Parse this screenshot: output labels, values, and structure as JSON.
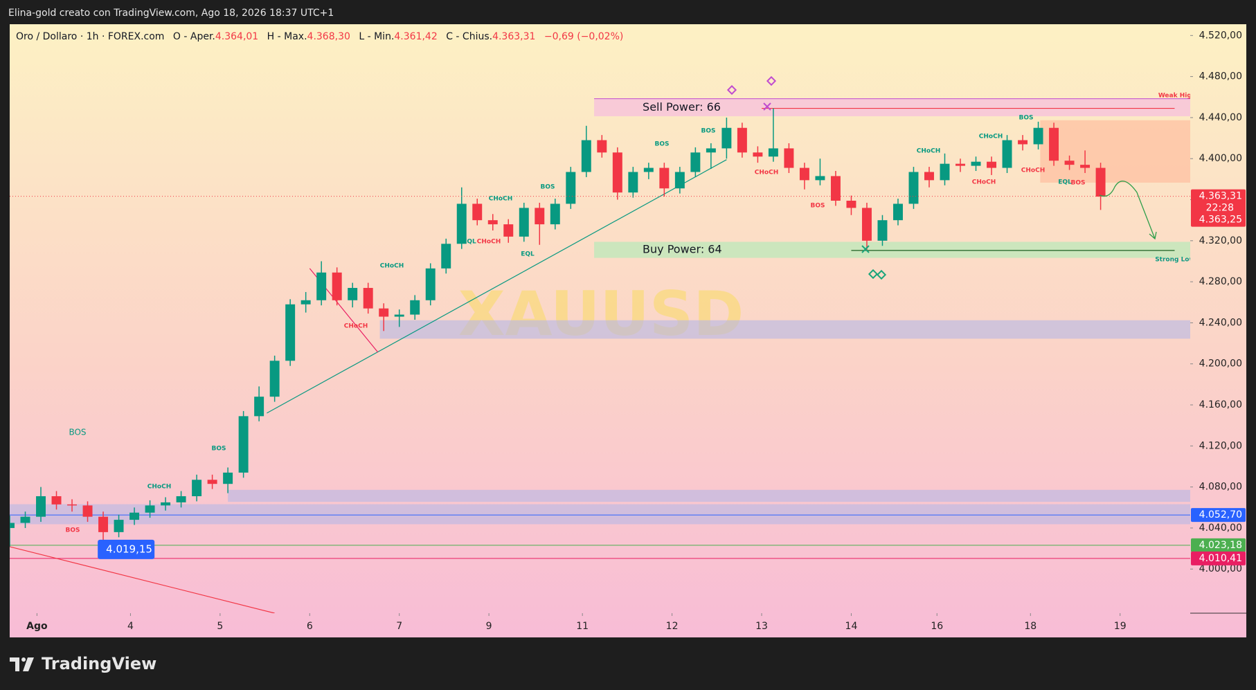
{
  "header": {
    "text": "Elina-gold creato con TradingView.com, Ago 18, 2026 18:37 UTC+1"
  },
  "legend": {
    "symbol": "Oro / Dollaro · 1h · FOREX.com",
    "fields": [
      {
        "label": "O - Aper.",
        "value": "4.364,01"
      },
      {
        "label": "H - Max.",
        "value": "4.368,30"
      },
      {
        "label": "L - Min.",
        "value": "4.361,42"
      },
      {
        "label": "C - Chius.",
        "value": "4.363,31"
      }
    ],
    "change": "−0,69 (−0,02%)"
  },
  "chart_data": {
    "type": "candlestick",
    "watermark": "XAUUSD",
    "up_color": "#089981",
    "down_color": "#f23645",
    "x": [
      0,
      4,
      8,
      12,
      16,
      20,
      24,
      28,
      32,
      36,
      40,
      44,
      48,
      52,
      56,
      60,
      64,
      68,
      72,
      76,
      80,
      84,
      88,
      92,
      96,
      100,
      104,
      108,
      112,
      116,
      120,
      124,
      128,
      132,
      136,
      140,
      144,
      148,
      152,
      156,
      160,
      164,
      168,
      172,
      176,
      180,
      184,
      188,
      192,
      196,
      200,
      204,
      208,
      212,
      216,
      220,
      224,
      228,
      232,
      236,
      240,
      244,
      248,
      252,
      256,
      260,
      264,
      268,
      272,
      276,
      280
    ],
    "open": [
      4.04,
      4.045,
      4.051,
      4.071,
      4.063,
      4.062,
      4.051,
      4.036,
      4.048,
      4.055,
      4.062,
      4.065,
      4.071,
      4.087,
      4.083,
      4.094,
      4.149,
      4.168,
      4.203,
      4.258,
      4.262,
      4.289,
      4.262,
      4.274,
      4.254,
      4.246,
      4.248,
      4.262,
      4.293,
      4.317,
      4.356,
      4.34,
      4.336,
      4.324,
      4.352,
      4.336,
      4.356,
      4.387,
      4.418,
      4.406,
      4.367,
      4.387,
      4.391,
      4.371,
      4.387,
      4.406,
      4.41,
      4.43,
      4.406,
      4.402,
      4.41,
      4.391,
      4.379,
      4.383,
      4.359,
      4.352,
      4.32,
      4.34,
      4.356,
      4.387,
      4.379,
      4.395,
      4.393,
      4.397,
      4.391,
      4.418,
      4.414,
      4.43,
      4.398,
      4.394,
      4.391
    ],
    "high": [
      4.052,
      4.056,
      4.08,
      4.076,
      4.068,
      4.066,
      4.056,
      4.053,
      4.06,
      4.067,
      4.07,
      4.076,
      4.092,
      4.092,
      4.099,
      4.154,
      4.178,
      4.208,
      4.263,
      4.27,
      4.3,
      4.294,
      4.279,
      4.279,
      4.259,
      4.253,
      4.267,
      4.298,
      4.322,
      4.372,
      4.361,
      4.346,
      4.341,
      4.357,
      4.357,
      4.361,
      4.392,
      4.432,
      4.423,
      4.411,
      4.392,
      4.396,
      4.396,
      4.392,
      4.411,
      4.415,
      4.44,
      4.435,
      4.412,
      4.449,
      4.415,
      4.396,
      4.4,
      4.388,
      4.364,
      4.357,
      4.345,
      4.361,
      4.392,
      4.392,
      4.405,
      4.4,
      4.402,
      4.402,
      4.423,
      4.423,
      4.436,
      4.435,
      4.403,
      4.408,
      4.396
    ],
    "low": [
      4.022,
      4.04,
      4.046,
      4.058,
      4.056,
      4.046,
      4.019,
      4.031,
      4.043,
      4.05,
      4.057,
      4.06,
      4.066,
      4.078,
      4.074,
      4.089,
      4.144,
      4.163,
      4.198,
      4.25,
      4.257,
      4.257,
      4.255,
      4.249,
      4.232,
      4.236,
      4.243,
      4.257,
      4.288,
      4.312,
      4.335,
      4.33,
      4.318,
      4.319,
      4.316,
      4.331,
      4.351,
      4.382,
      4.401,
      4.36,
      4.362,
      4.38,
      4.363,
      4.366,
      4.382,
      4.39,
      4.4,
      4.401,
      4.396,
      4.397,
      4.386,
      4.37,
      4.374,
      4.354,
      4.345,
      4.31,
      4.315,
      4.335,
      4.351,
      4.372,
      4.374,
      4.387,
      4.388,
      4.384,
      4.386,
      4.408,
      4.409,
      4.393,
      4.389,
      4.386,
      4.35
    ],
    "close": [
      4.045,
      4.051,
      4.071,
      4.063,
      4.062,
      4.051,
      4.036,
      4.048,
      4.055,
      4.062,
      4.065,
      4.071,
      4.087,
      4.083,
      4.094,
      4.149,
      4.168,
      4.203,
      4.258,
      4.262,
      4.289,
      4.262,
      4.274,
      4.254,
      4.246,
      4.248,
      4.262,
      4.293,
      4.317,
      4.356,
      4.34,
      4.336,
      4.324,
      4.352,
      4.336,
      4.356,
      4.387,
      4.418,
      4.406,
      4.367,
      4.387,
      4.391,
      4.371,
      4.387,
      4.406,
      4.41,
      4.43,
      4.406,
      4.402,
      4.41,
      4.391,
      4.379,
      4.383,
      4.359,
      4.352,
      4.32,
      4.34,
      4.356,
      4.387,
      4.379,
      4.395,
      4.393,
      4.397,
      4.391,
      4.418,
      4.414,
      4.43,
      4.398,
      4.394,
      4.391,
      4.363
    ],
    "xlim": [
      0,
      303
    ],
    "ylim": [
      3.957,
      4.531
    ],
    "grid": false,
    "xticks": [
      {
        "value": 7,
        "label": "Ago"
      },
      {
        "value": 31,
        "label": "4"
      },
      {
        "value": 54,
        "label": "5"
      },
      {
        "value": 77,
        "label": "6"
      },
      {
        "value": 100,
        "label": "7"
      },
      {
        "value": 123,
        "label": "9"
      },
      {
        "value": 147,
        "label": "11"
      },
      {
        "value": 170,
        "label": "12"
      },
      {
        "value": 193,
        "label": "13"
      },
      {
        "value": 216,
        "label": "14"
      },
      {
        "value": 238,
        "label": "16"
      },
      {
        "value": 262,
        "label": "18"
      },
      {
        "value": 285,
        "label": "19"
      }
    ],
    "yticks": [
      {
        "value": 4.0,
        "label": "4.000,00"
      },
      {
        "value": 4.04,
        "label": "4.040,00"
      },
      {
        "value": 4.08,
        "label": "4.080,00"
      },
      {
        "value": 4.12,
        "label": "4.120,00"
      },
      {
        "value": 4.16,
        "label": "4.160,00"
      },
      {
        "value": 4.2,
        "label": "4.200,00"
      },
      {
        "value": 4.24,
        "label": "4.240,00"
      },
      {
        "value": 4.28,
        "label": "4.280,00"
      },
      {
        "value": 4.32,
        "label": "4.320,00"
      },
      {
        "value": 4.36,
        "label": "4.360,00"
      },
      {
        "value": 4.4,
        "label": "4.400,00"
      },
      {
        "value": 4.44,
        "label": "4.440,00"
      },
      {
        "value": 4.48,
        "label": "4.480,00"
      },
      {
        "value": 4.52,
        "label": "4.520,00"
      }
    ],
    "zones": [
      {
        "x0": 150,
        "x1": 303,
        "y0": 4.4413,
        "y1": 4.4584,
        "color": "#f8c8d8",
        "label": "Sell Power: 66"
      },
      {
        "x0": 150,
        "x1": 303,
        "y0": 4.3033,
        "y1": 4.3189,
        "color": "#c9e6bd",
        "label": "Buy Power: 64"
      },
      {
        "x0": 95,
        "x1": 303,
        "y0": 4.2245,
        "y1": 4.2425,
        "color": "#b6b8e6"
      },
      {
        "x0": 56,
        "x1": 303,
        "y0": 4.0655,
        "y1": 4.0772,
        "color": "#b6b8e6"
      },
      {
        "x0": 0,
        "x1": 303,
        "y0": 4.0437,
        "y1": 4.0632,
        "color": "#b6b8e6"
      },
      {
        "x0": 264.5,
        "x1": 303,
        "y0": 4.3766,
        "y1": 4.4374,
        "color": "#ffb89a"
      }
    ],
    "lines": [
      {
        "x": [
          66,
          184
        ],
        "y": [
          4.152,
          4.399
        ],
        "color": "#089981"
      },
      {
        "x": [
          0,
          68
        ],
        "y": [
          4.0218,
          3.957
        ],
        "color": "#f23645"
      },
      {
        "x": [
          77,
          94.5
        ],
        "y": [
          4.293,
          4.2113
        ],
        "color": "#e91e63"
      },
      {
        "x": [
          193,
          299
        ],
        "y": [
          4.449,
          4.449
        ],
        "color": "#f23645"
      },
      {
        "x": [
          216,
          299
        ],
        "y": [
          4.3105,
          4.3105
        ],
        "color": "#1b5e20"
      }
    ],
    "price_lines": [
      {
        "value": 4.0527,
        "label": "4.052,70",
        "color": "#2962ff"
      },
      {
        "value": 4.02318,
        "label": "4.023,18",
        "color": "#4caf50"
      },
      {
        "value": 4.01041,
        "label": "4.010,41",
        "color": "#e91e63"
      }
    ],
    "current_price": {
      "value": 4.36331,
      "label": "4.363,31",
      "countdown": "22:28",
      "bid": {
        "value": 4.36325,
        "label": "4.363,25"
      },
      "color": "#f23645"
    },
    "marker_tag": {
      "x": 22.6,
      "value": 4.01915,
      "label": "4.019,15",
      "color": "#2962ff"
    },
    "annotations": [
      {
        "text": "BOS",
        "color": "#089981"
      },
      {
        "text": "BOS",
        "color": "#089981"
      },
      {
        "text": "CHoCH",
        "color": "#089981"
      },
      {
        "text": "BOS",
        "color": "#f23645"
      },
      {
        "text": "CHoCH",
        "color": "#089981"
      },
      {
        "text": "CHoCH",
        "color": "#f23645"
      },
      {
        "text": "CHoCH",
        "color": "#089981"
      },
      {
        "text": "EQL",
        "color": "#089981"
      },
      {
        "text": "CHoCH",
        "color": "#f23645"
      },
      {
        "text": "EQL",
        "color": "#089981"
      },
      {
        "text": "BOS",
        "color": "#089981"
      },
      {
        "text": "BOS",
        "color": "#089981"
      },
      {
        "text": "BOS",
        "color": "#089981"
      },
      {
        "text": "CHoCH",
        "color": "#f23645"
      },
      {
        "text": "BOS",
        "color": "#f23645"
      },
      {
        "text": "CHoCH",
        "color": "#089981"
      },
      {
        "text": "CHoCH",
        "color": "#089981"
      },
      {
        "text": "BOS",
        "color": "#089981"
      },
      {
        "text": "CHoCH",
        "color": "#f23645"
      },
      {
        "text": "CHoCH",
        "color": "#f23645"
      },
      {
        "text": "EQL",
        "color": "#089981"
      },
      {
        "text": "BOS",
        "color": "#f23645"
      },
      {
        "text": "Weak High",
        "color": "#f23645"
      },
      {
        "text": "Strong Low",
        "color": "#089981"
      }
    ]
  },
  "footer": {
    "logo": "TradingView"
  }
}
